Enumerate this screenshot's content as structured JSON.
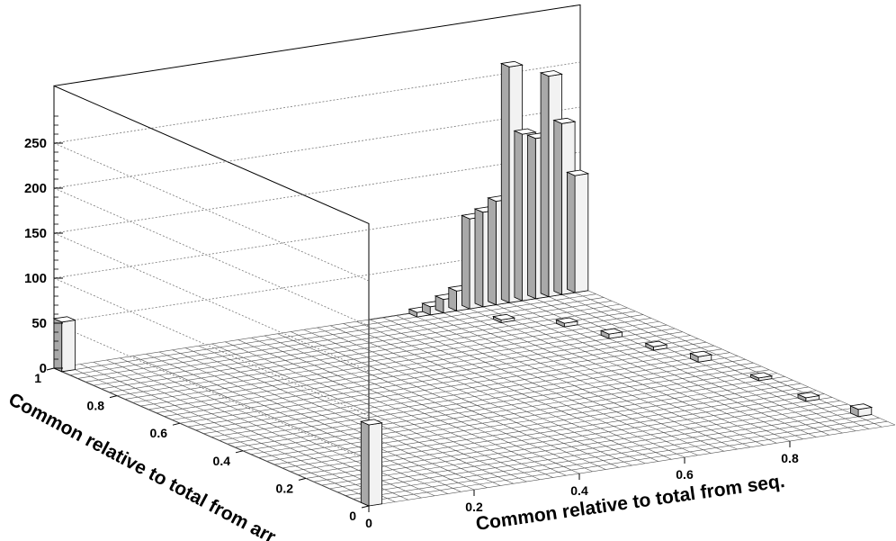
{
  "chart_data": {
    "type": "lego3d",
    "xlabel": "Common relative to total from seq.",
    "ylabel": "Common relative to total from arr.",
    "xlim": [
      0,
      1
    ],
    "ylim": [
      0,
      1
    ],
    "zlim": [
      0,
      280
    ],
    "x_ticks": [
      "0",
      "0.2",
      "0.4",
      "0.6",
      "0.8"
    ],
    "y_ticks": [
      "0",
      "0.2",
      "0.4",
      "0.6",
      "0.8",
      "1"
    ],
    "z_ticks": [
      "0",
      "50",
      "100",
      "150",
      "200",
      "250"
    ],
    "grid": true,
    "bins": [
      {
        "x": 0.0125,
        "y": 0.0125,
        "value": 90
      },
      {
        "x": 0.0125,
        "y": 0.9875,
        "value": 55
      },
      {
        "x": 0.6875,
        "y": 0.9875,
        "value": 5
      },
      {
        "x": 0.7125,
        "y": 0.9875,
        "value": 9
      },
      {
        "x": 0.7375,
        "y": 0.9875,
        "value": 15
      },
      {
        "x": 0.7625,
        "y": 0.9875,
        "value": 22
      },
      {
        "x": 0.7875,
        "y": 0.9875,
        "value": 100
      },
      {
        "x": 0.8125,
        "y": 0.9875,
        "value": 105
      },
      {
        "x": 0.8375,
        "y": 0.9875,
        "value": 115
      },
      {
        "x": 0.8625,
        "y": 0.9875,
        "value": 262
      },
      {
        "x": 0.8875,
        "y": 0.9875,
        "value": 185
      },
      {
        "x": 0.9125,
        "y": 0.9875,
        "value": 178
      },
      {
        "x": 0.9375,
        "y": 0.9875,
        "value": 245
      },
      {
        "x": 0.9625,
        "y": 0.9875,
        "value": 190
      },
      {
        "x": 0.9875,
        "y": 0.9875,
        "value": 130
      },
      {
        "x": 0.7875,
        "y": 0.8875,
        "value": 3
      },
      {
        "x": 0.8625,
        "y": 0.8125,
        "value": 4
      },
      {
        "x": 0.8875,
        "y": 0.7125,
        "value": 5
      },
      {
        "x": 0.9125,
        "y": 0.6125,
        "value": 4
      },
      {
        "x": 0.9375,
        "y": 0.5125,
        "value": 6
      },
      {
        "x": 0.9625,
        "y": 0.3625,
        "value": 3
      },
      {
        "x": 0.9625,
        "y": 0.2125,
        "value": 4
      },
      {
        "x": 0.9875,
        "y": 0.0875,
        "value": 8
      }
    ]
  }
}
